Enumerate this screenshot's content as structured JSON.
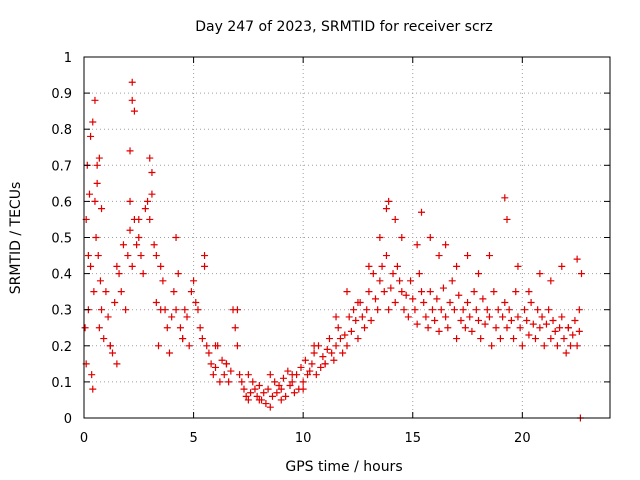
{
  "chart_data": {
    "type": "scatter",
    "title": "Day 247 of 2023, SRMTID for receiver scrz",
    "xlabel": "GPS time / hours",
    "ylabel": "SRMTID / TECUs",
    "xlim": [
      0,
      24
    ],
    "ylim": [
      0,
      1
    ],
    "xticks": [
      0,
      5,
      10,
      15,
      20
    ],
    "xtick_labels": [
      "0",
      "5",
      "10",
      "15",
      "20"
    ],
    "yticks": [
      0,
      0.1,
      0.2,
      0.3,
      0.4,
      0.5,
      0.6,
      0.7,
      0.8,
      0.9,
      1
    ],
    "ytick_labels": [
      "0",
      "0.1",
      "0.2",
      "0.3",
      "0.4",
      "0.5",
      "0.6",
      "0.7",
      "0.8",
      "0.9",
      "1"
    ],
    "grid": true,
    "marker": "+",
    "color": "#e00000",
    "series": [
      {
        "name": "SRMTID",
        "x": [
          0.05,
          0.1,
          0.15,
          0.2,
          0.25,
          0.3,
          0.35,
          0.4,
          0.45,
          0.5,
          0.55,
          0.6,
          0.65,
          0.7,
          0.75,
          0.8,
          0.9,
          1.0,
          1.1,
          1.2,
          1.3,
          1.4,
          1.5,
          1.6,
          1.7,
          1.8,
          1.9,
          2.0,
          2.1,
          2.2,
          2.3,
          2.4,
          2.5,
          2.6,
          2.7,
          2.8,
          2.9,
          3.0,
          3.1,
          3.2,
          3.3,
          3.4,
          3.5,
          3.6,
          3.7,
          3.8,
          3.9,
          4.0,
          4.1,
          4.2,
          4.3,
          4.4,
          4.5,
          4.6,
          4.7,
          4.8,
          4.9,
          5.0,
          5.1,
          5.2,
          5.3,
          5.4,
          5.5,
          5.6,
          5.7,
          5.8,
          5.9,
          6.0,
          6.1,
          6.2,
          6.3,
          6.4,
          6.5,
          6.6,
          6.7,
          6.8,
          6.9,
          7.0,
          7.1,
          7.2,
          7.3,
          7.4,
          7.5,
          7.6,
          7.7,
          7.8,
          7.9,
          8.0,
          8.1,
          8.2,
          8.3,
          8.4,
          8.5,
          8.6,
          8.7,
          8.8,
          8.9,
          9.0,
          9.1,
          9.2,
          9.3,
          9.4,
          9.5,
          9.6,
          9.7,
          9.8,
          9.9,
          10.0,
          10.1,
          10.2,
          10.3,
          10.4,
          10.5,
          10.6,
          10.7,
          10.8,
          10.9,
          11.0,
          11.1,
          11.2,
          11.3,
          11.4,
          11.5,
          11.6,
          11.7,
          11.8,
          11.9,
          12.0,
          12.1,
          12.2,
          12.3,
          12.4,
          12.5,
          12.6,
          12.7,
          12.8,
          12.9,
          13.0,
          13.1,
          13.2,
          13.3,
          13.4,
          13.5,
          13.6,
          13.7,
          13.8,
          13.9,
          14.0,
          14.1,
          14.2,
          14.3,
          14.4,
          14.5,
          14.6,
          14.7,
          14.8,
          14.9,
          15.0,
          15.1,
          15.2,
          15.3,
          15.4,
          15.5,
          15.6,
          15.7,
          15.8,
          15.9,
          16.0,
          16.1,
          16.2,
          16.3,
          16.4,
          16.5,
          16.6,
          16.7,
          16.8,
          16.9,
          17.0,
          17.1,
          17.2,
          17.3,
          17.4,
          17.5,
          17.6,
          17.7,
          17.8,
          17.9,
          18.0,
          18.1,
          18.2,
          18.3,
          18.4,
          18.5,
          18.6,
          18.7,
          18.8,
          18.9,
          19.0,
          19.1,
          19.2,
          19.3,
          19.4,
          19.5,
          19.6,
          19.7,
          19.8,
          19.9,
          20.0,
          20.1,
          20.2,
          20.3,
          20.4,
          20.5,
          20.6,
          20.7,
          20.8,
          20.9,
          21.0,
          21.1,
          21.2,
          21.3,
          21.4,
          21.5,
          21.6,
          21.7,
          21.8,
          21.9,
          22.0,
          22.1,
          22.2,
          22.3,
          22.4,
          22.5,
          22.6,
          22.7,
          0.1,
          0.2,
          0.3,
          0.4,
          0.5,
          0.6,
          0.7,
          0.8,
          1.2,
          1.5,
          2.1,
          2.1,
          2.2,
          2.2,
          2.3,
          2.5,
          3.0,
          3.1,
          3.3,
          3.5,
          4.2,
          4.5,
          5.5,
          6.0,
          6.5,
          7.0,
          7.5,
          8.0,
          8.5,
          9.0,
          9.5,
          10.0,
          10.5,
          11.0,
          11.5,
          12.0,
          12.5,
          13.0,
          13.5,
          13.8,
          13.9,
          14.2,
          14.5,
          15.2,
          15.4,
          15.8,
          16.2,
          16.5,
          17.0,
          17.5,
          18.0,
          18.5,
          19.2,
          19.3,
          19.8,
          20.3,
          20.8,
          21.3,
          21.8,
          22.1,
          22.5,
          22.6,
          22.65
        ],
        "y": [
          0.25,
          0.55,
          0.7,
          0.3,
          0.62,
          0.42,
          0.12,
          0.08,
          0.35,
          0.88,
          0.5,
          0.7,
          0.45,
          0.25,
          0.38,
          0.3,
          0.22,
          0.35,
          0.28,
          0.2,
          0.18,
          0.32,
          0.42,
          0.4,
          0.35,
          0.48,
          0.3,
          0.45,
          0.52,
          0.42,
          0.55,
          0.48,
          0.5,
          0.45,
          0.4,
          0.58,
          0.6,
          0.55,
          0.62,
          0.48,
          0.32,
          0.2,
          0.42,
          0.38,
          0.3,
          0.25,
          0.18,
          0.28,
          0.35,
          0.3,
          0.4,
          0.25,
          0.22,
          0.3,
          0.28,
          0.2,
          0.35,
          0.38,
          0.32,
          0.3,
          0.25,
          0.22,
          0.42,
          0.2,
          0.18,
          0.15,
          0.12,
          0.14,
          0.2,
          0.1,
          0.16,
          0.12,
          0.15,
          0.1,
          0.13,
          0.3,
          0.25,
          0.2,
          0.12,
          0.1,
          0.08,
          0.06,
          0.05,
          0.07,
          0.1,
          0.08,
          0.06,
          0.09,
          0.05,
          0.07,
          0.04,
          0.08,
          0.12,
          0.06,
          0.1,
          0.07,
          0.09,
          0.08,
          0.11,
          0.06,
          0.13,
          0.09,
          0.1,
          0.07,
          0.12,
          0.08,
          0.14,
          0.1,
          0.16,
          0.12,
          0.13,
          0.15,
          0.18,
          0.12,
          0.2,
          0.14,
          0.17,
          0.15,
          0.19,
          0.22,
          0.18,
          0.16,
          0.2,
          0.25,
          0.22,
          0.18,
          0.23,
          0.2,
          0.28,
          0.24,
          0.3,
          0.27,
          0.22,
          0.32,
          0.28,
          0.25,
          0.3,
          0.35,
          0.27,
          0.4,
          0.33,
          0.3,
          0.38,
          0.42,
          0.35,
          0.45,
          0.3,
          0.36,
          0.4,
          0.32,
          0.42,
          0.38,
          0.35,
          0.3,
          0.34,
          0.28,
          0.38,
          0.33,
          0.3,
          0.26,
          0.4,
          0.35,
          0.32,
          0.28,
          0.25,
          0.35,
          0.3,
          0.27,
          0.33,
          0.24,
          0.3,
          0.36,
          0.28,
          0.25,
          0.32,
          0.38,
          0.3,
          0.22,
          0.34,
          0.27,
          0.3,
          0.25,
          0.32,
          0.28,
          0.24,
          0.35,
          0.3,
          0.27,
          0.22,
          0.33,
          0.26,
          0.3,
          0.28,
          0.2,
          0.35,
          0.25,
          0.3,
          0.22,
          0.28,
          0.32,
          0.25,
          0.3,
          0.27,
          0.22,
          0.35,
          0.28,
          0.25,
          0.2,
          0.3,
          0.27,
          0.23,
          0.32,
          0.26,
          0.22,
          0.3,
          0.25,
          0.28,
          0.2,
          0.26,
          0.3,
          0.22,
          0.27,
          0.24,
          0.2,
          0.25,
          0.28,
          0.22,
          0.18,
          0.25,
          0.2,
          0.23,
          0.27,
          0.2,
          0.24,
          0.4,
          0.15,
          0.45,
          0.78,
          0.82,
          0.6,
          0.65,
          0.72,
          0.58,
          0.2,
          0.15,
          0.6,
          0.74,
          0.93,
          0.88,
          0.85,
          0.55,
          0.72,
          0.68,
          0.45,
          0.3,
          0.5,
          0.22,
          0.45,
          0.2,
          0.15,
          0.3,
          0.12,
          0.05,
          0.03,
          0.05,
          0.12,
          0.08,
          0.2,
          0.15,
          0.28,
          0.35,
          0.32,
          0.42,
          0.5,
          0.58,
          0.6,
          0.55,
          0.5,
          0.48,
          0.57,
          0.5,
          0.45,
          0.48,
          0.42,
          0.45,
          0.4,
          0.45,
          0.61,
          0.55,
          0.42,
          0.35,
          0.4,
          0.38,
          0.42,
          0.25,
          0.44,
          0.3,
          0.0
        ]
      }
    ]
  }
}
